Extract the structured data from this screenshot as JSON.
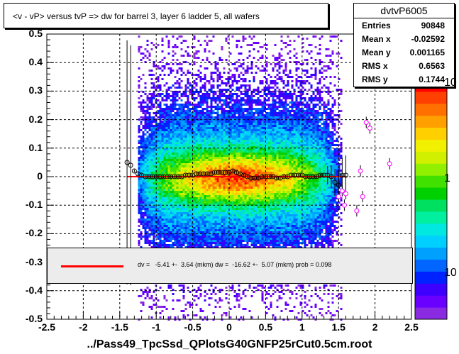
{
  "title": "<v - vP>       versus  tvP =>  dw for barrel 3, layer 6 ladder 5, all wafers",
  "stats": {
    "name": "dvtvP6005",
    "rows": [
      {
        "key": "Entries",
        "value": "90848"
      },
      {
        "key": "Mean x",
        "value": "-0.02592"
      },
      {
        "key": "Mean y",
        "value": "0.001165"
      },
      {
        "key": "RMS x",
        "value": "0.6563"
      },
      {
        "key": "RMS y",
        "value": "0.1744"
      }
    ]
  },
  "fit_text": "dv =   -5.41 +-  3.64 (mkm) dw =  -16.62 +-  5.07 (mkm) prob = 0.098",
  "x_title": "../Pass49_TpcSsd_QPlotsG40GNFP25rCut0.5cm.root",
  "colors": {
    "fit_line": "#ff0000",
    "profile_marker": "#000000",
    "outlier_marker": "#ff00ff"
  },
  "chart_data": {
    "type": "heatmap",
    "xlim": [
      -2.5,
      2.5
    ],
    "ylim": [
      -0.5,
      0.5
    ],
    "x_ticks": [
      "-2.5",
      "-2",
      "-1.5",
      "-1",
      "-0.5",
      "0",
      "0.5",
      "1",
      "1.5",
      "2",
      "2.5"
    ],
    "y_ticks": [
      "-0.5",
      "-0.4",
      "-0.3",
      "-0.2",
      "-0.1",
      "0",
      "0.1",
      "0.2",
      "0.3",
      "0.4",
      "0.5"
    ],
    "z_scale": "log",
    "z_ticks": [
      "10",
      "1",
      "10"
    ],
    "grid": true,
    "fit_line": {
      "x": [
        -1.4,
        1.6
      ],
      "y": [
        0.0,
        0.0
      ]
    },
    "profile": {
      "x": [
        -1.4,
        -1.35,
        -1.3,
        -1.25,
        -1.2,
        -1.15,
        -1.1,
        -1.05,
        -1.0,
        -0.95,
        -0.9,
        -0.85,
        -0.8,
        -0.75,
        -0.7,
        -0.65,
        -0.6,
        -0.55,
        -0.5,
        -0.45,
        -0.4,
        -0.35,
        -0.3,
        -0.25,
        -0.2,
        -0.15,
        -0.1,
        -0.05,
        0.0,
        0.05,
        0.1,
        0.15,
        0.2,
        0.25,
        0.3,
        0.35,
        0.4,
        0.45,
        0.5,
        0.55,
        0.6,
        0.65,
        0.7,
        0.75,
        0.8,
        0.85,
        0.9,
        0.95,
        1.0,
        1.05,
        1.1,
        1.15,
        1.2,
        1.25,
        1.3,
        1.35,
        1.4,
        1.45,
        1.5,
        1.55,
        1.6
      ],
      "y": [
        0.05,
        0.04,
        0.02,
        0.01,
        0.005,
        0.0,
        0.0,
        0.0,
        0.0,
        0.0,
        0.0,
        0.0,
        0.0,
        0.0,
        0.0,
        0.0,
        0.005,
        0.005,
        0.005,
        0.01,
        0.01,
        0.01,
        0.01,
        0.01,
        0.015,
        0.015,
        0.015,
        0.015,
        0.015,
        0.02,
        0.015,
        0.01,
        0.005,
        0.0,
        -0.005,
        -0.005,
        -0.005,
        0.0,
        0.0,
        0.0,
        0.0,
        -0.005,
        -0.005,
        0.0,
        0.0,
        0.005,
        0.005,
        0.005,
        0.005,
        0.0,
        0.0,
        0.0,
        0.0,
        0.005,
        0.005,
        0.005,
        0.0,
        -0.02,
        -0.03,
        0.005,
        0.005
      ]
    },
    "outliers": {
      "x": [
        1.5,
        1.55,
        1.58,
        1.6,
        1.75,
        1.8,
        1.83,
        1.88,
        1.93,
        2.2
      ],
      "y": [
        -0.07,
        -0.05,
        -0.1,
        -0.06,
        -0.12,
        0.02,
        -0.07,
        0.19,
        0.17,
        0.045
      ]
    }
  }
}
